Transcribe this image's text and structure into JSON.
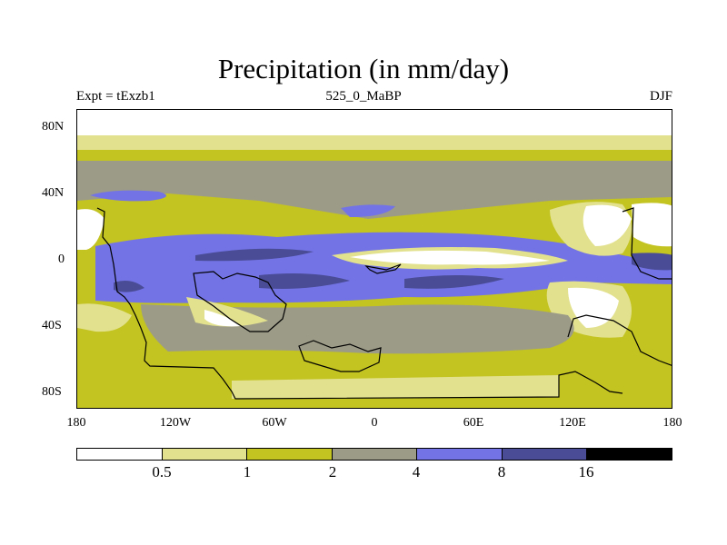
{
  "title": "Precipitation (in mm/day)",
  "experiment": "Expt = tExzb1",
  "period": "525_0_MaBP",
  "season": "DJF",
  "y_axis_labels": [
    "80N",
    "40N",
    "0",
    "40S",
    "80S"
  ],
  "x_axis_labels": [
    "180",
    "120W",
    "60W",
    "0",
    "60E",
    "120E",
    "180"
  ],
  "colorbar": {
    "labels": [
      "0.5",
      "1",
      "2",
      "4",
      "8",
      "16"
    ],
    "colors": [
      "#ffffff",
      "#e2e18e",
      "#c3c322",
      "#9c9b88",
      "#7373e6",
      "#4a4c96",
      "#000000"
    ]
  }
}
